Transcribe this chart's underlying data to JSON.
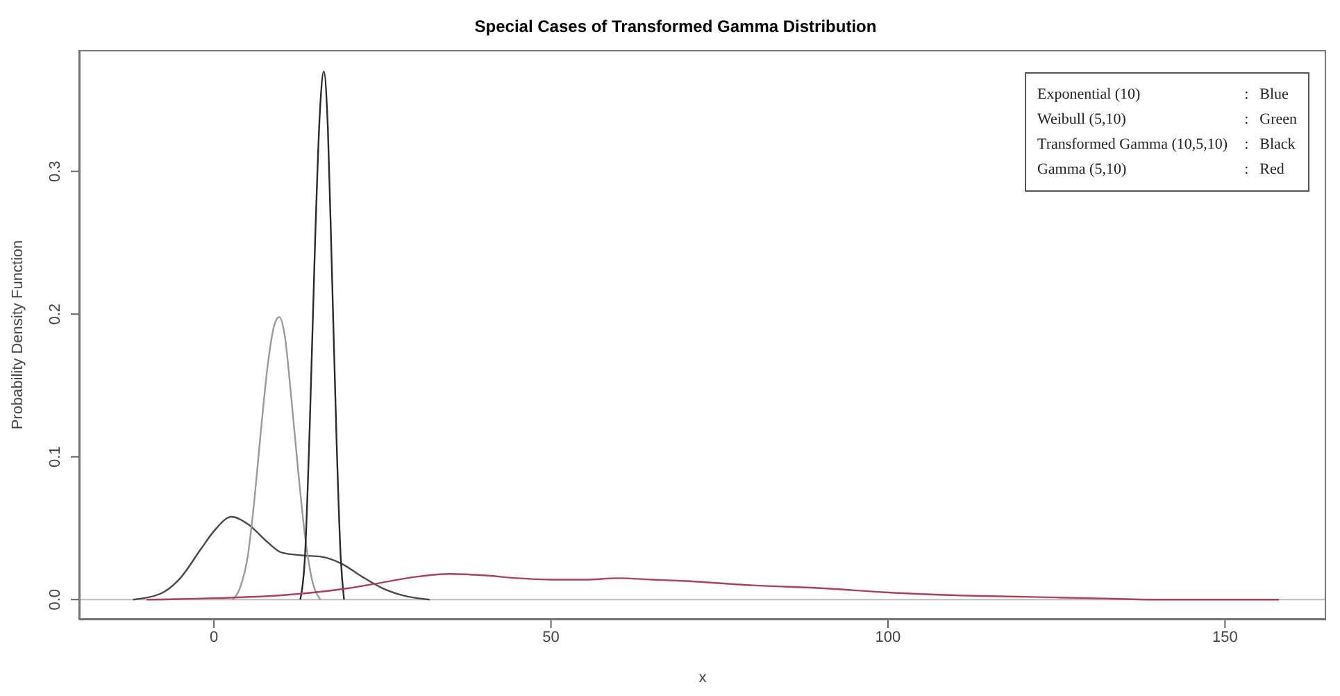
{
  "chart_data": {
    "type": "line",
    "title": "Special Cases of Transformed Gamma Distribution",
    "xlabel": "x",
    "ylabel": "Probability Density Function",
    "xlim": [
      -20,
      165
    ],
    "xticks": [
      0,
      50,
      100,
      150
    ],
    "ylim": [
      -0.014,
      0.385
    ],
    "yticks": [
      {
        "value": 0,
        "label": "0.0"
      },
      {
        "value": 0.1,
        "label": "0.1"
      },
      {
        "value": 0.2,
        "label": "0.2"
      },
      {
        "value": 0.3,
        "label": "0.3"
      }
    ],
    "legend": "top right",
    "marker": "none",
    "line_style": "solid",
    "ref_lines": [
      {
        "axis": "y",
        "value": 0,
        "label": null,
        "color": "#bbbbbb"
      }
    ],
    "series": [
      {
        "name": "Exponential (10) : Blue",
        "color": "#4a4a4a",
        "x": [
          -12,
          -8,
          -5,
          -2,
          0,
          2.6,
          5,
          8,
          10,
          13,
          16,
          19,
          22,
          25,
          28,
          32
        ],
        "values": [
          0,
          0.004,
          0.015,
          0.035,
          0.048,
          0.058,
          0.053,
          0.04,
          0.033,
          0.031,
          0.03,
          0.025,
          0.016,
          0.008,
          0.003,
          0
        ]
      },
      {
        "name": "Weibull (5,10) : Green",
        "color": "#9a9a9a",
        "x": [
          2.8,
          4,
          5,
          6,
          7,
          8,
          9,
          9.7,
          10.5,
          11.5,
          12.5,
          13.5,
          14.5,
          15.8
        ],
        "values": [
          0,
          0.01,
          0.03,
          0.07,
          0.12,
          0.165,
          0.193,
          0.198,
          0.185,
          0.14,
          0.09,
          0.045,
          0.015,
          0
        ]
      },
      {
        "name": "Transformed Gamma (10,5,10) : Black",
        "color": "#2a2a2a",
        "x": [
          12.8,
          13.5,
          14.2,
          15,
          15.7,
          16.3,
          16.9,
          17.5,
          18.2,
          18.8,
          19.3
        ],
        "values": [
          0,
          0.03,
          0.12,
          0.25,
          0.34,
          0.37,
          0.33,
          0.23,
          0.11,
          0.03,
          0
        ]
      },
      {
        "name": "Gamma (5,10) : Red",
        "color": "#b0405a",
        "x": [
          -10,
          0,
          10,
          20,
          25,
          30,
          35,
          40,
          45,
          50,
          55,
          60,
          65,
          70,
          80,
          90,
          100,
          110,
          120,
          130,
          140,
          150,
          158
        ],
        "values": [
          0,
          0.001,
          0.003,
          0.008,
          0.012,
          0.016,
          0.018,
          0.017,
          0.015,
          0.014,
          0.014,
          0.015,
          0.014,
          0.013,
          0.01,
          0.008,
          0.005,
          0.003,
          0.002,
          0.001,
          0,
          0,
          0
        ]
      }
    ]
  }
}
